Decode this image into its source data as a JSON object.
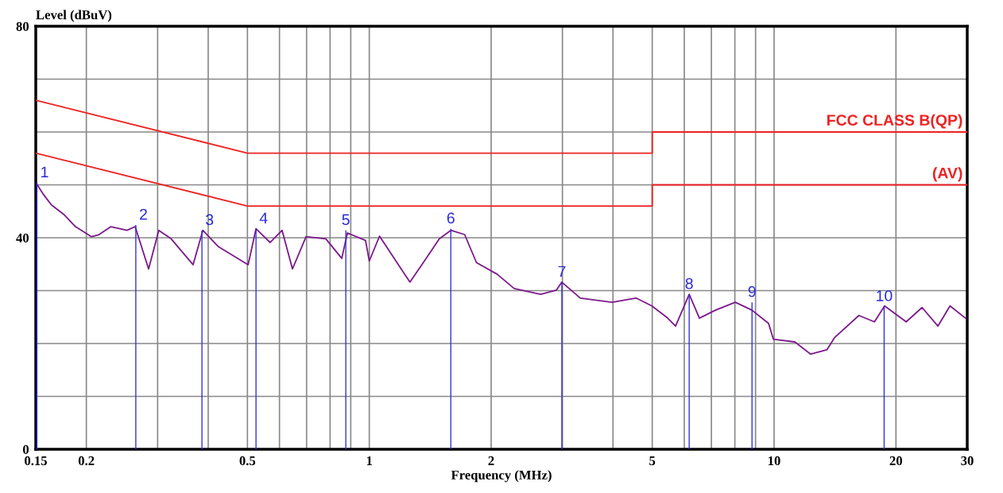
{
  "chart_data": {
    "type": "line",
    "ylabel": "Level (dBuV)",
    "xlabel": "Frequency (MHz)",
    "log": "x",
    "grid": true,
    "legend": false,
    "xlim": [
      0.15,
      30
    ],
    "ylim": [
      0,
      80
    ],
    "xticks": [
      {
        "value": 0.15,
        "label": "0.15"
      },
      0.2,
      {
        "value": 0.3,
        "label": null
      },
      {
        "value": 0.4,
        "label": null
      },
      0.5,
      {
        "value": 0.6,
        "label": null
      },
      {
        "value": 0.7,
        "label": null
      },
      {
        "value": 0.8,
        "label": null
      },
      {
        "value": 0.9,
        "label": null
      },
      1,
      2,
      {
        "value": 3,
        "label": null
      },
      {
        "value": 4,
        "label": null
      },
      5,
      {
        "value": 6,
        "label": null
      },
      {
        "value": 7,
        "label": null
      },
      {
        "value": 8,
        "label": null
      },
      {
        "value": 9,
        "label": null
      },
      10,
      20,
      30
    ],
    "yticks": [
      0,
      {
        "value": 10,
        "label": null
      },
      {
        "value": 20,
        "label": null
      },
      {
        "value": 30,
        "label": null
      },
      40,
      {
        "value": 50,
        "label": null
      },
      {
        "value": 60,
        "label": null
      },
      {
        "value": 70,
        "label": null
      },
      80
    ],
    "series": [
      {
        "color": "#7b1a8a",
        "x": [
          0.151,
          0.157,
          0.164,
          0.176,
          0.188,
          0.206,
          0.215,
          0.23,
          0.252,
          0.264,
          0.285,
          0.302,
          0.324,
          0.367,
          0.388,
          0.424,
          0.502,
          0.525,
          0.569,
          0.609,
          0.646,
          0.698,
          0.781,
          0.855,
          0.883,
          0.979,
          1.0,
          1.06,
          1.26,
          1.34,
          1.49,
          1.59,
          1.72,
          1.84,
          2.07,
          2.28,
          2.65,
          2.9,
          2.99,
          3.32,
          3.98,
          4.56,
          4.99,
          5.46,
          5.71,
          6.17,
          6.54,
          7.16,
          8.02,
          8.82,
          9.69,
          9.96,
          11.25,
          12.3,
          13.5,
          14.1,
          16.2,
          17.7,
          18.75,
          21.2,
          23.2,
          25.4,
          27.2,
          29.7
        ],
        "values": [
          50.1,
          48.1,
          46.2,
          44.4,
          42.1,
          40.2,
          40.6,
          42.1,
          41.4,
          42.1,
          34.1,
          41.4,
          39.8,
          34.9,
          41.4,
          38.3,
          34.9,
          41.7,
          39.1,
          41.4,
          34.1,
          40.2,
          39.8,
          36.1,
          40.9,
          39.5,
          35.6,
          40.3,
          31.6,
          34.6,
          39.8,
          41.4,
          40.6,
          35.3,
          33.1,
          30.4,
          29.3,
          30.1,
          31.6,
          28.6,
          27.8,
          28.6,
          27.1,
          24.8,
          23.3,
          29.3,
          24.8,
          26.3,
          27.8,
          26.3,
          23.8,
          20.8,
          20.3,
          18.0,
          18.8,
          21.1,
          25.3,
          24.1,
          27.1,
          24.1,
          26.8,
          23.3,
          27.1,
          24.8
        ]
      },
      {
        "type": "line",
        "name": "FCC CLASS B(QP)",
        "color": "#ee2222",
        "x": [
          0.15,
          0.5,
          5,
          5,
          30
        ],
        "values": [
          66,
          56,
          56,
          60,
          60
        ]
      },
      {
        "type": "line",
        "name": "(AV)",
        "color": "#ee2222",
        "x": [
          0.15,
          0.5,
          5,
          5,
          30
        ],
        "values": [
          56,
          46,
          46,
          50,
          50
        ]
      },
      {
        "type": "bar",
        "color": "#2b2bd6",
        "x": [
          0.151,
          0.265,
          0.386,
          0.525,
          0.875,
          1.59,
          2.99,
          6.17,
          8.82,
          18.7
        ],
        "values": [
          50.4,
          42.4,
          41.4,
          41.7,
          41.4,
          41.7,
          31.6,
          29.3,
          27.8,
          27.0
        ]
      }
    ],
    "annotations": [
      {
        "text": "1",
        "x": 0.151,
        "y": 50.4
      },
      {
        "text": "2",
        "x": 0.265,
        "y": 42.4
      },
      {
        "text": "3",
        "x": 0.386,
        "y": 41.4
      },
      {
        "text": "4",
        "x": 0.525,
        "y": 41.7
      },
      {
        "text": "5",
        "x": 0.875,
        "y": 41.4
      },
      {
        "text": "6",
        "x": 1.59,
        "y": 41.7
      },
      {
        "text": "7",
        "x": 2.99,
        "y": 31.6
      },
      {
        "text": "8",
        "x": 6.17,
        "y": 29.3
      },
      {
        "text": "9",
        "x": 8.82,
        "y": 27.8
      },
      {
        "text": "10",
        "x": 18.7,
        "y": 27.0
      }
    ]
  }
}
